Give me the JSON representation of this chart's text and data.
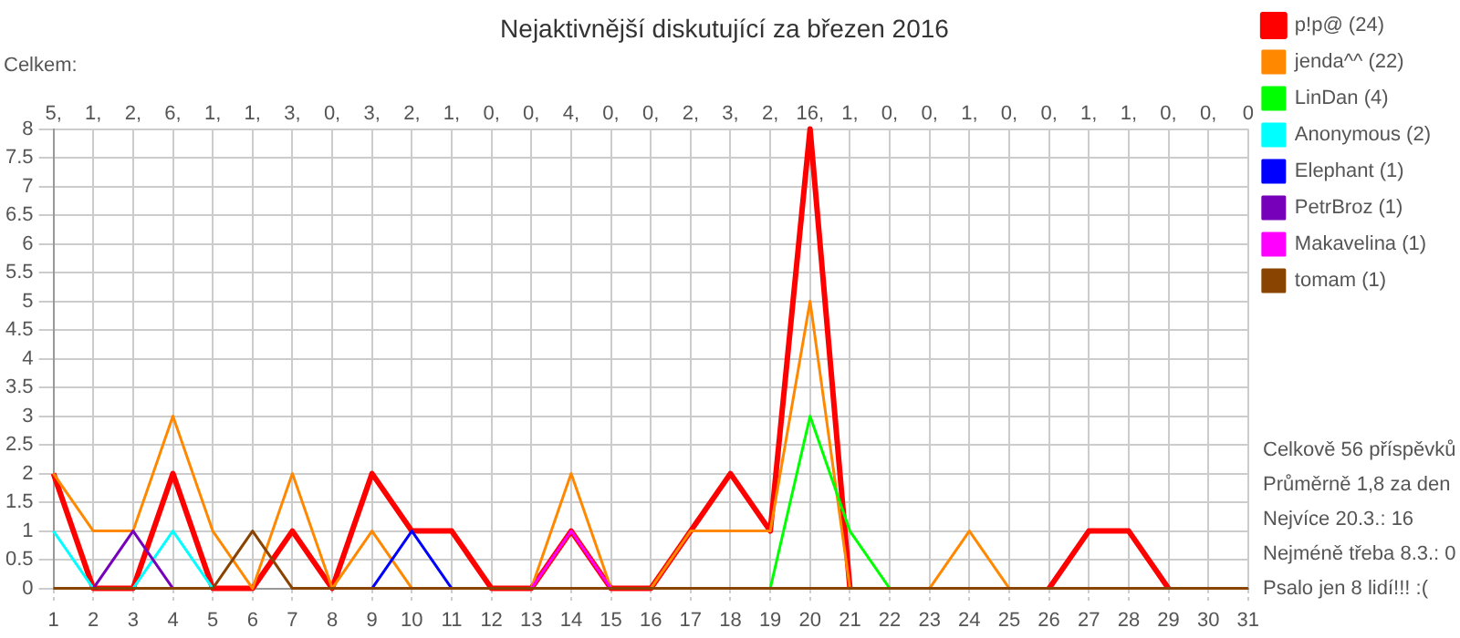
{
  "chart_data": {
    "type": "line",
    "title": "Nejaktivnější diskutující za březen 2016",
    "x": [
      1,
      2,
      3,
      4,
      5,
      6,
      7,
      8,
      9,
      10,
      11,
      12,
      13,
      14,
      15,
      16,
      17,
      18,
      19,
      20,
      21,
      22,
      23,
      24,
      25,
      26,
      27,
      28,
      29,
      30,
      31
    ],
    "series": [
      {
        "name": "p!p@ (24)",
        "color": "#ff0000",
        "values": [
          2,
          0,
          0,
          2,
          0,
          0,
          1,
          0,
          2,
          1,
          1,
          0,
          0,
          1,
          0,
          0,
          1,
          2,
          1,
          8,
          0,
          null,
          null,
          null,
          null,
          0,
          1,
          1,
          0,
          null,
          null
        ]
      },
      {
        "name": "jenda^^ (22)",
        "color": "#ff8800",
        "values": [
          2,
          1,
          1,
          3,
          1,
          0,
          2,
          0,
          1,
          0,
          null,
          null,
          0,
          2,
          0,
          0,
          1,
          1,
          1,
          5,
          0,
          null,
          0,
          1,
          0,
          null,
          null,
          null,
          null,
          null,
          null
        ]
      },
      {
        "name": "LinDan (4)",
        "color": "#00ff00",
        "values": [
          null,
          null,
          null,
          null,
          null,
          null,
          null,
          null,
          null,
          null,
          null,
          null,
          null,
          null,
          null,
          null,
          null,
          null,
          0,
          3,
          1,
          0,
          null,
          null,
          null,
          null,
          null,
          null,
          null,
          null,
          null
        ]
      },
      {
        "name": "Anonymous (2)",
        "color": "#00ffff",
        "values": [
          1,
          0,
          0,
          1,
          0,
          null,
          null,
          null,
          null,
          null,
          null,
          null,
          null,
          null,
          null,
          null,
          null,
          null,
          null,
          null,
          null,
          null,
          null,
          null,
          null,
          null,
          null,
          null,
          null,
          null,
          null
        ]
      },
      {
        "name": "Elephant (1)",
        "color": "#0000ff",
        "values": [
          null,
          null,
          null,
          null,
          null,
          null,
          null,
          null,
          0,
          1,
          0,
          null,
          null,
          null,
          null,
          null,
          null,
          null,
          null,
          null,
          null,
          null,
          null,
          null,
          null,
          null,
          null,
          null,
          null,
          null,
          null
        ]
      },
      {
        "name": "PetrBroz (1)",
        "color": "#7700bb",
        "values": [
          null,
          0,
          1,
          0,
          null,
          null,
          null,
          null,
          null,
          null,
          null,
          null,
          null,
          null,
          null,
          null,
          null,
          null,
          null,
          null,
          null,
          null,
          null,
          null,
          null,
          null,
          null,
          null,
          null,
          null,
          null
        ]
      },
      {
        "name": "Makavelina (1)",
        "color": "#ff00ff",
        "values": [
          null,
          null,
          null,
          null,
          null,
          null,
          null,
          null,
          null,
          null,
          null,
          null,
          0,
          1,
          0,
          null,
          null,
          null,
          null,
          null,
          null,
          null,
          null,
          null,
          null,
          null,
          null,
          null,
          null,
          null,
          null
        ]
      },
      {
        "name": "tomam (1)",
        "color": "#884400",
        "values": [
          0,
          0,
          0,
          0,
          0,
          1,
          0,
          0,
          0,
          0,
          0,
          0,
          0,
          0,
          0,
          0,
          0,
          0,
          0,
          0,
          0,
          0,
          0,
          0,
          0,
          0,
          0,
          0,
          0,
          0,
          0
        ]
      }
    ],
    "totals": [
      "5,",
      "1,",
      "2,",
      "6,",
      "1,",
      "1,",
      "3,",
      "0,",
      "3,",
      "2,",
      "1,",
      "0,",
      "0,",
      "4,",
      "0,",
      "0,",
      "2,",
      "3,",
      "2,",
      "16,",
      "1,",
      "0,",
      "0,",
      "1,",
      "0,",
      "0,",
      "1,",
      "1,",
      "0,",
      "0,",
      "0"
    ],
    "xlim": [
      1,
      31
    ],
    "xticks": [
      1,
      2,
      3,
      4,
      5,
      6,
      7,
      8,
      9,
      10,
      11,
      12,
      13,
      14,
      15,
      16,
      17,
      18,
      19,
      20,
      21,
      22,
      23,
      24,
      25,
      26,
      27,
      28,
      29,
      30,
      31
    ],
    "ylim": [
      0,
      8
    ],
    "yticks": [
      0,
      0.5,
      1,
      1.5,
      2,
      2.5,
      3,
      3.5,
      4,
      4.5,
      5,
      5.5,
      6,
      6.5,
      7,
      7.5,
      8
    ],
    "grid": true,
    "legend": "right",
    "marker": "none",
    "line_style": "solid",
    "annotations": [
      "Celkem:",
      "Celkově 56 příspěvků",
      "Průměrně 1,8 za den",
      "Nejvíce 20.3.: 16",
      "Nejméně třeba 8.3.: 0",
      "Psalo jen 8 lidí!!! :("
    ]
  }
}
